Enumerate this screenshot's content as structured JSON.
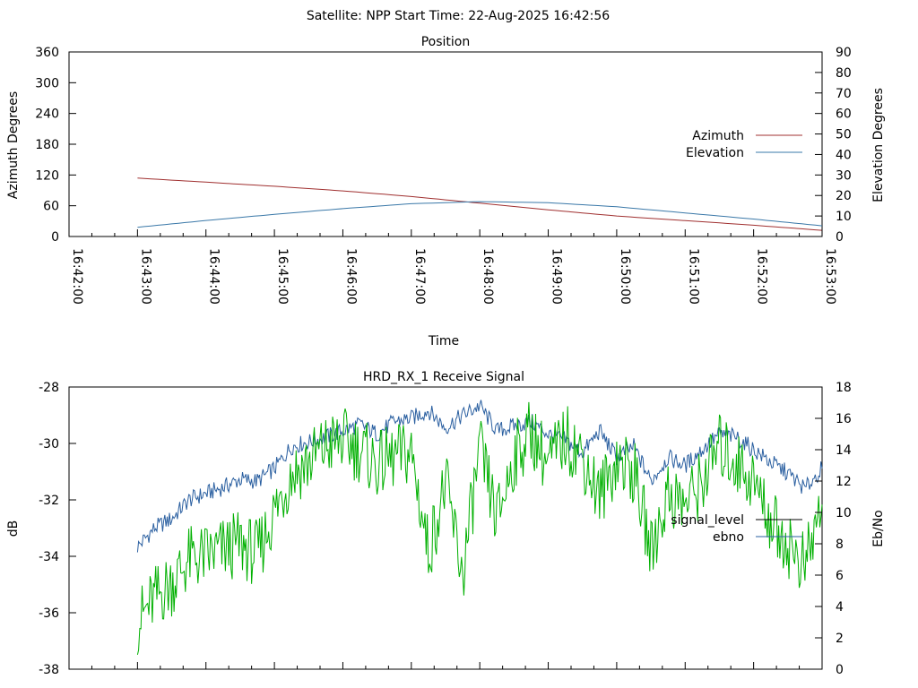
{
  "header": {
    "title": "Satellite: NPP    Start Time: 22-Aug-2025 16:42:56"
  },
  "colors": {
    "azimuth": "#a03030",
    "elevation": "#3a78a8",
    "signal_level": "#00b000",
    "ebno": "#2a5fa0",
    "signal_level_key": "#000000"
  },
  "chart_data": [
    {
      "type": "line",
      "title": "Position",
      "xlabel": "Time",
      "ylabel": "Azimuth Degrees",
      "y2label": "Elevation Degrees",
      "ylim": [
        0,
        360
      ],
      "y2lim": [
        0,
        90
      ],
      "yticks": [
        0,
        60,
        120,
        180,
        240,
        300,
        360
      ],
      "y2ticks": [
        0,
        10,
        20,
        30,
        40,
        50,
        60,
        70,
        80,
        90
      ],
      "xlim": [
        "16:42:00",
        "16:53:00"
      ],
      "xtick_labels": [
        "16:42:00",
        "16:43:00",
        "16:44:00",
        "16:45:00",
        "16:46:00",
        "16:47:00",
        "16:48:00",
        "16:49:00",
        "16:50:00",
        "16:51:00",
        "16:52:00",
        "16:53:00"
      ],
      "legend_position": "right",
      "series": [
        {
          "name": "Azimuth",
          "axis": "left",
          "color": "#a03030",
          "x": [
            "16:43:00",
            "16:44:00",
            "16:45:00",
            "16:46:00",
            "16:47:00",
            "16:48:00",
            "16:49:00",
            "16:50:00",
            "16:51:00",
            "16:52:00",
            "16:53:00"
          ],
          "y": [
            114,
            106,
            98,
            89,
            78,
            65,
            52,
            40,
            31,
            22,
            12
          ]
        },
        {
          "name": "Elevation",
          "axis": "right",
          "color": "#3a78a8",
          "x": [
            "16:43:00",
            "16:44:00",
            "16:45:00",
            "16:46:00",
            "16:47:00",
            "16:48:00",
            "16:49:00",
            "16:50:00",
            "16:51:00",
            "16:52:00",
            "16:53:00"
          ],
          "y": [
            4.5,
            7.8,
            10.8,
            13.6,
            16.0,
            17.0,
            16.5,
            14.5,
            11.5,
            8.5,
            5.2
          ]
        }
      ]
    },
    {
      "type": "line",
      "title": "HRD_RX_1 Receive Signal",
      "ylabel": "dB",
      "y2label": "Eb/No",
      "ylim": [
        -38,
        -28
      ],
      "y2lim": [
        0,
        18
      ],
      "yticks": [
        -38,
        -36,
        -34,
        -32,
        -30,
        -28
      ],
      "y2ticks": [
        0,
        2,
        4,
        6,
        8,
        10,
        12,
        14,
        16,
        18
      ],
      "xlim": [
        "16:42:00",
        "16:53:00"
      ],
      "legend_position": "right",
      "series": [
        {
          "name": "signal_level",
          "axis": "left",
          "color": "#000000",
          "x": [],
          "y": []
        },
        {
          "name": "ebno",
          "axis": "right",
          "color": "#2a5fa0",
          "x": [
            "16:43:00",
            "16:43:15",
            "16:43:30",
            "16:43:45",
            "16:44:00",
            "16:44:15",
            "16:44:30",
            "16:44:45",
            "16:45:00",
            "16:45:15",
            "16:45:30",
            "16:45:45",
            "16:46:00",
            "16:46:15",
            "16:46:30",
            "16:46:45",
            "16:47:00",
            "16:47:15",
            "16:47:30",
            "16:47:45",
            "16:48:00",
            "16:48:15",
            "16:48:30",
            "16:48:45",
            "16:49:00",
            "16:49:15",
            "16:49:30",
            "16:49:45",
            "16:50:00",
            "16:50:15",
            "16:50:30",
            "16:50:45",
            "16:51:00",
            "16:51:15",
            "16:51:30",
            "16:51:45",
            "16:52:00",
            "16:52:15",
            "16:52:30",
            "16:52:45",
            "16:53:00"
          ],
          "y": [
            7.8,
            9.0,
            9.6,
            10.8,
            11.2,
            11.6,
            12.1,
            12.0,
            12.8,
            14.2,
            14.5,
            14.8,
            15.2,
            15.6,
            15.0,
            15.8,
            16.0,
            16.5,
            15.4,
            16.2,
            16.8,
            15.2,
            15.5,
            15.8,
            15.0,
            14.6,
            13.8,
            15.2,
            13.5,
            14.2,
            12.0,
            13.5,
            13.0,
            14.0,
            15.0,
            14.8,
            14.0,
            13.2,
            12.5,
            11.5,
            12.8
          ]
        },
        {
          "name": "",
          "axis": "right",
          "color": "#00b000",
          "x": [
            "16:43:00",
            "16:43:15",
            "16:43:30",
            "16:43:45",
            "16:44:00",
            "16:44:15",
            "16:44:30",
            "16:44:45",
            "16:45:00",
            "16:45:15",
            "16:45:30",
            "16:45:45",
            "16:46:00",
            "16:46:15",
            "16:46:30",
            "16:46:45",
            "16:47:00",
            "16:47:15",
            "16:47:30",
            "16:47:45",
            "16:48:00",
            "16:48:15",
            "16:48:30",
            "16:48:45",
            "16:49:00",
            "16:49:15",
            "16:49:30",
            "16:49:45",
            "16:50:00",
            "16:50:15",
            "16:50:30",
            "16:50:45",
            "16:51:00",
            "16:51:15",
            "16:51:30",
            "16:51:45",
            "16:52:00",
            "16:52:15",
            "16:52:30",
            "16:52:45",
            "16:53:00"
          ],
          "y": [
            3.0,
            4.5,
            5.5,
            7.0,
            7.2,
            7.6,
            8.0,
            7.3,
            10.0,
            12.5,
            13.2,
            14.2,
            14.6,
            14.0,
            13.0,
            13.5,
            13.8,
            7.5,
            11.8,
            6.0,
            14.0,
            9.5,
            13.5,
            15.2,
            13.0,
            14.8,
            13.6,
            11.0,
            13.4,
            12.6,
            7.5,
            11.2,
            10.5,
            12.0,
            14.2,
            13.2,
            12.0,
            9.5,
            8.0,
            6.5,
            10.5
          ]
        }
      ]
    }
  ]
}
